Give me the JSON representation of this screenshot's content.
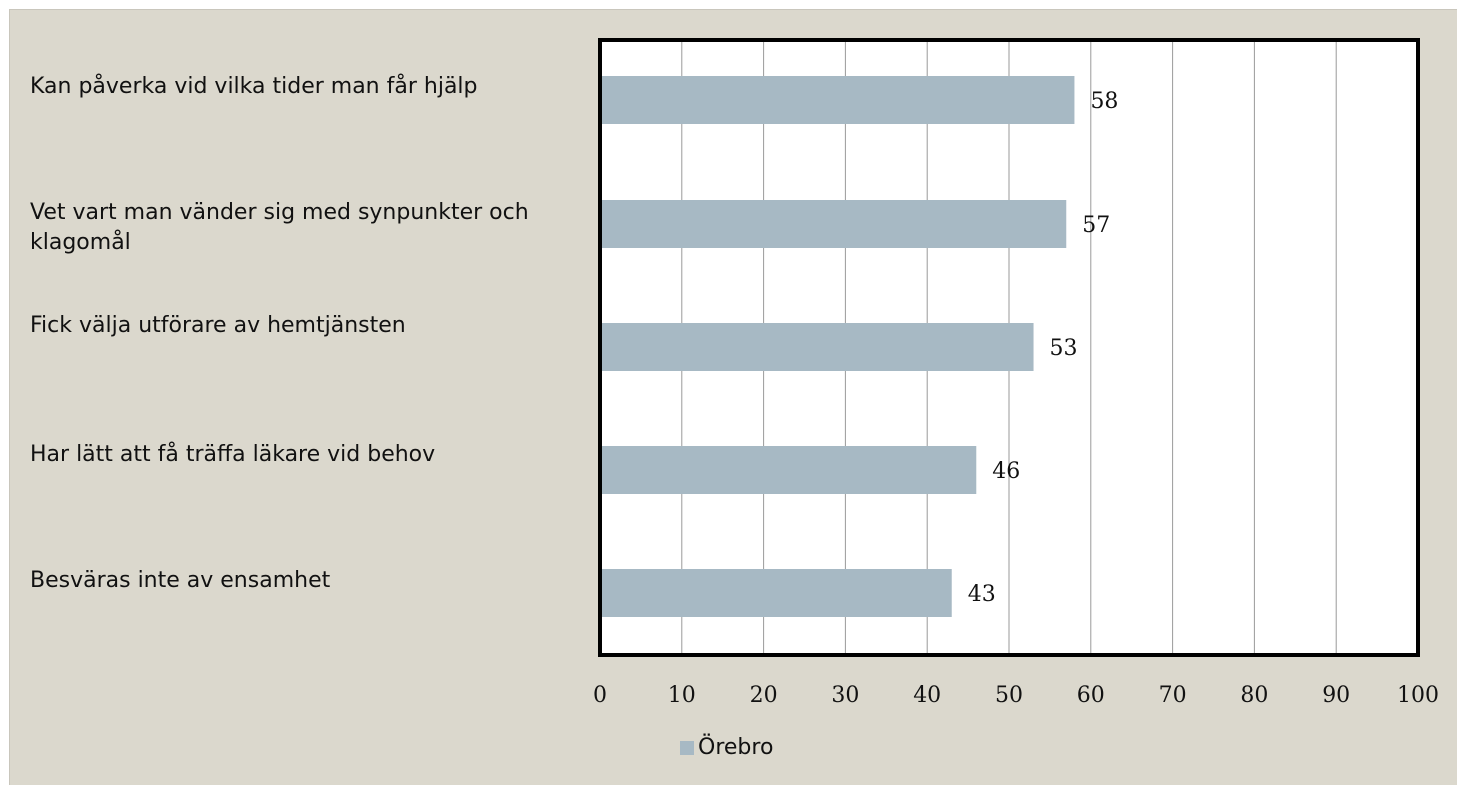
{
  "chart_data": {
    "type": "bar",
    "orientation": "horizontal",
    "categories": [
      "Kan påverka vid vilka tider man får hjälp",
      "Vet vart man vänder sig med synpunkter och klagomål",
      "Fick välja utförare av hemtjänsten",
      "Har lätt att få träffa läkare vid behov",
      "Besväras inte av ensamhet"
    ],
    "series": [
      {
        "name": "Örebro",
        "values": [
          58,
          57,
          53,
          46,
          43
        ],
        "color": "#a7b9c4"
      }
    ],
    "data_labels": [
      "58",
      "57",
      "53",
      "46",
      "43"
    ],
    "xlim": [
      0,
      100
    ],
    "x_ticks": [
      "0",
      "10",
      "20",
      "30",
      "40",
      "50",
      "60",
      "70",
      "80",
      "90",
      "100"
    ],
    "grid": true,
    "legend_position": "bottom",
    "title": "",
    "xlabel": "",
    "ylabel": ""
  },
  "colors": {
    "background": "#dbd8cd",
    "plot_background": "#ffffff",
    "gridline": "#9a9a9a",
    "plot_border": "#000000"
  }
}
